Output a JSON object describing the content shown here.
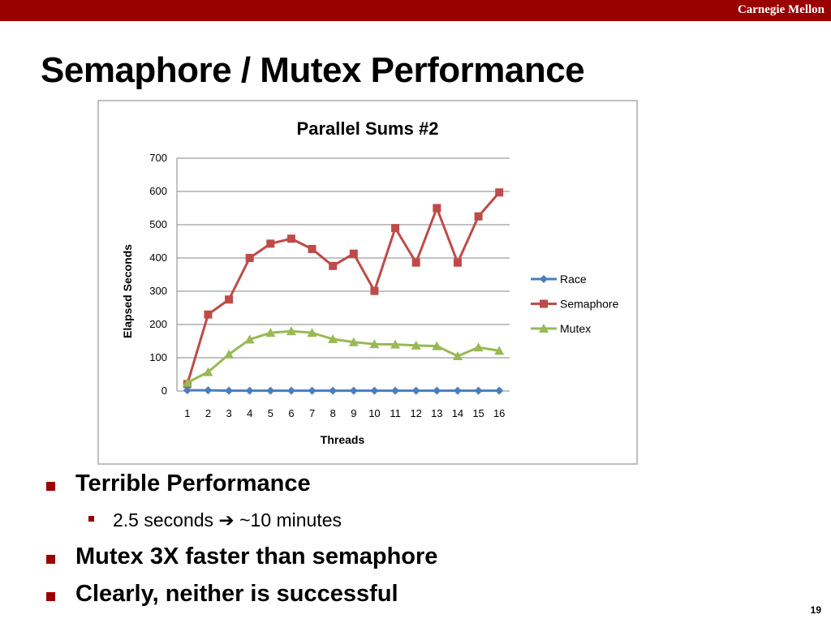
{
  "header": {
    "brand": "Carnegie Mellon"
  },
  "slide": {
    "title": "Semaphore / Mutex Performance",
    "page_number": "19",
    "bullets": [
      "Terrible Performance",
      "Mutex 3X faster than semaphore",
      "Clearly, neither is successful"
    ],
    "sub_bullet": {
      "left": "2.5 seconds",
      "arrow": "➔",
      "right": "~10 minutes"
    }
  },
  "colors": {
    "accent": "#990000",
    "race": "#4a7ebb",
    "semaphore": "#be4b48",
    "mutex": "#98b954"
  },
  "chart_data": {
    "type": "line",
    "title": "Parallel Sums #2",
    "xlabel": "Threads",
    "ylabel": "Elapsed Seconds",
    "ylim": [
      0,
      700
    ],
    "yticks": [
      0,
      100,
      200,
      300,
      400,
      500,
      600,
      700
    ],
    "x": [
      1,
      2,
      3,
      4,
      5,
      6,
      7,
      8,
      9,
      10,
      11,
      12,
      13,
      14,
      15,
      16
    ],
    "grid": true,
    "legend_position": "right",
    "series": [
      {
        "name": "Race",
        "marker": "diamond",
        "color": "#4a7ebb",
        "values": [
          2,
          2,
          1,
          1,
          1,
          1,
          1,
          1,
          1,
          1,
          1,
          1,
          1,
          1,
          1,
          1
        ]
      },
      {
        "name": "Semaphore",
        "marker": "square",
        "color": "#be4b48",
        "values": [
          21,
          230,
          275,
          400,
          443,
          458,
          427,
          376,
          413,
          301,
          490,
          386,
          550,
          386,
          525,
          597
        ]
      },
      {
        "name": "Mutex",
        "marker": "triangle",
        "color": "#98b954",
        "values": [
          25,
          57,
          110,
          155,
          175,
          180,
          175,
          156,
          147,
          141,
          140,
          137,
          135,
          105,
          131,
          121
        ]
      }
    ]
  }
}
